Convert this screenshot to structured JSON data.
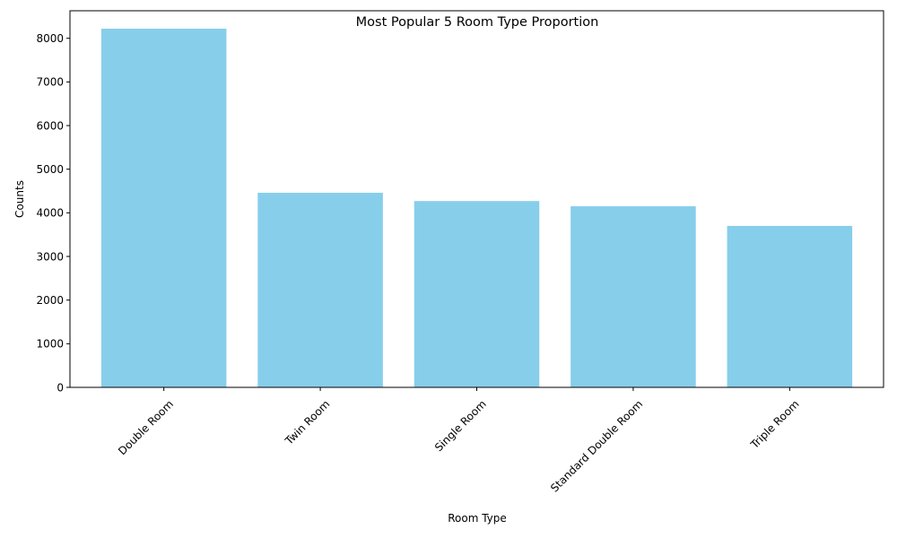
{
  "chart_data": {
    "type": "bar",
    "title": "Most Popular 5 Room Type Proportion",
    "xlabel": "Room Type",
    "ylabel": "Counts",
    "categories": [
      "Double Room",
      "Twin Room",
      "Single Room",
      "Standard Double Room",
      "Triple Room"
    ],
    "values": [
      8220,
      4460,
      4270,
      4150,
      3700
    ],
    "ylim": [
      0,
      8631
    ],
    "yticks": [
      0,
      1000,
      2000,
      3000,
      4000,
      5000,
      6000,
      7000,
      8000
    ],
    "grid": false,
    "legend": "none",
    "bar_color": "#87ceeb",
    "xtick_rotation": 45
  }
}
